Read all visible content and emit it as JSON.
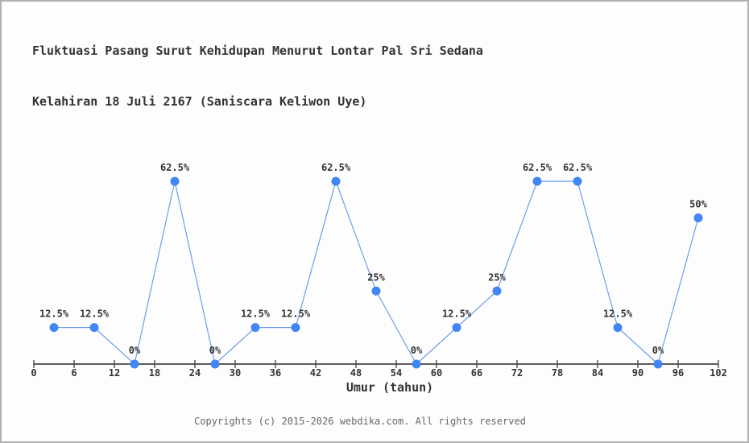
{
  "page": {
    "title_line1": "Fluktuasi Pasang Surut Kehidupan Menurut Lontar Pal Sri Sedana",
    "title_line2": "Kelahiran 18 Juli 2167 (Saniscara Keliwon Uye)",
    "footer": "Copyrights (c) 2015-2026 webdika.com. All rights reserved"
  },
  "colors": {
    "marker": "#4285f4",
    "line": "#6d9eeb",
    "axis": "#444444",
    "label_text": "#333333",
    "tick_text": "#333333",
    "footer_text": "#666666",
    "background": "#fdfdfd",
    "border": "#b0b0b0"
  },
  "chart_data": {
    "type": "line",
    "title": "Fluktuasi Pasang Surut Kehidupan Menurut Lontar Pal Sri Sedana Kelahiran 18 Juli 2167 (Saniscara Keliwon Uye)",
    "x": [
      3,
      9,
      15,
      21,
      27,
      33,
      39,
      45,
      51,
      57,
      63,
      69,
      75,
      81,
      87,
      93,
      99
    ],
    "values": [
      12.5,
      12.5,
      0,
      62.5,
      0,
      12.5,
      12.5,
      62.5,
      25,
      0,
      12.5,
      25,
      62.5,
      62.5,
      12.5,
      0,
      50
    ],
    "point_labels": [
      "12.5%",
      "12.5%",
      "0%",
      "62.5%",
      "0%",
      "12.5%",
      "12.5%",
      "62.5%",
      "25%",
      "0%",
      "12.5%",
      "25%",
      "62.5%",
      "62.5%",
      "12.5%",
      "0%",
      "50%"
    ],
    "x_ticks": [
      0,
      6,
      12,
      18,
      24,
      30,
      36,
      42,
      48,
      54,
      60,
      66,
      72,
      78,
      84,
      90,
      96,
      102
    ],
    "xlabel": "Umur (tahun)",
    "ylabel": "",
    "xlim": [
      0,
      102
    ],
    "ylim": [
      0,
      70
    ],
    "grid": false,
    "legend": "none",
    "y_axis_visible": false
  }
}
